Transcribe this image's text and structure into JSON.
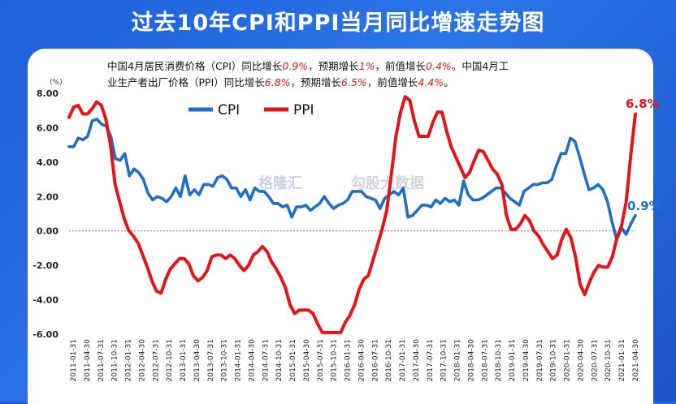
{
  "title": "过去10年CPI和PPI当月同比增速走势图",
  "note": {
    "p1": "中国4月居民消费价格（CPI）同比增长",
    "cpi": "0.9%",
    "p2": "，预期增长",
    "cpi_exp": "1%",
    "p3": "，前值增长",
    "cpi_prev": "0.4%",
    "p4": "。中国4月工业生产者出厂价格（PPI）同比增长",
    "ppi": "6.8%",
    "p5": "，预期增长",
    "ppi_exp": "6.5%",
    "p6": "，前值增长",
    "ppi_prev": "4.4%",
    "p7": "。"
  },
  "watermark": {
    "brand": "格隆汇",
    "data": "勾股大数据"
  },
  "chart_data": {
    "type": "line",
    "title": "过去10年CPI和PPI当月同比增速走势图",
    "ylabel": "(%)",
    "ylim": [
      -6,
      8
    ],
    "yticks": [
      8,
      6,
      4,
      2,
      0,
      -2,
      -4,
      -6
    ],
    "ytick_labels": [
      "8.00",
      "6.00",
      "4.00",
      "2.00",
      "0.00",
      "-2.00",
      "-4.00",
      "-6.00"
    ],
    "xtick_labels": [
      "2011-01-31",
      "2011-04-30",
      "2011-07-31",
      "2011-10-31",
      "2012-01-31",
      "2012-04-30",
      "2012-07-31",
      "2012-10-31",
      "2013-01-31",
      "2013-04-30",
      "2013-07-31",
      "2013-10-31",
      "2014-01-31",
      "2014-04-30",
      "2014-07-31",
      "2014-10-31",
      "2015-01-31",
      "2015-04-30",
      "2015-07-31",
      "2015-10-31",
      "2016-01-31",
      "2016-04-30",
      "2016-07-31",
      "2016-10-31",
      "2017-01-31",
      "2017-04-30",
      "2017-07-31",
      "2017-10-31",
      "2018-01-31",
      "2018-04-30",
      "2018-07-31",
      "2018-10-31",
      "2019-01-31",
      "2019-04-30",
      "2019-07-31",
      "2019-10-31",
      "2020-01-31",
      "2020-04-30",
      "2020-07-31",
      "2020-10-31",
      "2021-01-31",
      "2021-04-30"
    ],
    "legend": "top-left",
    "end_labels": {
      "ppi": "6.8%",
      "cpi": "0.9%"
    },
    "zero_line": true,
    "series": [
      {
        "name": "CPI",
        "color": "#1f6fc3",
        "values": [
          4.9,
          4.9,
          5.4,
          5.3,
          5.5,
          6.4,
          6.5,
          6.2,
          6.1,
          5.5,
          4.2,
          4.1,
          4.5,
          3.2,
          3.6,
          3.4,
          3.0,
          2.2,
          1.8,
          2.0,
          1.9,
          1.7,
          2.0,
          2.5,
          2.0,
          3.2,
          2.1,
          2.4,
          2.1,
          2.7,
          2.7,
          2.6,
          3.1,
          3.2,
          3.0,
          2.5,
          2.5,
          2.0,
          2.4,
          1.8,
          2.5,
          2.3,
          2.3,
          2.0,
          1.6,
          1.6,
          1.4,
          1.5,
          0.8,
          1.4,
          1.4,
          1.5,
          1.2,
          1.4,
          1.6,
          2.0,
          1.6,
          1.3,
          1.5,
          1.6,
          1.8,
          2.3,
          2.3,
          2.3,
          2.0,
          1.9,
          1.8,
          1.3,
          1.9,
          2.1,
          2.3,
          2.1,
          2.5,
          0.8,
          0.9,
          1.2,
          1.5,
          1.5,
          1.4,
          1.8,
          1.6,
          1.9,
          1.7,
          1.8,
          1.5,
          2.9,
          2.1,
          1.8,
          1.8,
          1.9,
          2.1,
          2.3,
          2.5,
          2.5,
          2.2,
          1.9,
          1.7,
          1.5,
          2.3,
          2.5,
          2.7,
          2.7,
          2.8,
          2.8,
          3.0,
          3.8,
          4.5,
          4.5,
          5.4,
          5.2,
          4.3,
          3.3,
          2.4,
          2.5,
          2.7,
          2.4,
          1.7,
          0.5,
          -0.5,
          0.2,
          -0.2,
          0.4,
          0.9
        ]
      },
      {
        "name": "PPI",
        "color": "#e0161a",
        "values": [
          6.6,
          7.2,
          7.3,
          6.8,
          6.8,
          7.1,
          7.5,
          7.3,
          6.5,
          5.0,
          2.7,
          1.7,
          0.7,
          0.0,
          -0.3,
          -0.7,
          -1.4,
          -2.1,
          -2.9,
          -3.5,
          -3.6,
          -2.8,
          -2.2,
          -1.9,
          -1.6,
          -1.6,
          -1.9,
          -2.6,
          -2.9,
          -2.7,
          -2.3,
          -1.5,
          -1.4,
          -1.4,
          -1.6,
          -1.4,
          -1.6,
          -2.0,
          -2.3,
          -2.0,
          -1.4,
          -1.2,
          -0.9,
          -1.2,
          -1.8,
          -2.2,
          -2.7,
          -3.3,
          -4.3,
          -4.8,
          -4.6,
          -4.6,
          -4.6,
          -4.8,
          -5.4,
          -5.9,
          -5.9,
          -5.9,
          -5.9,
          -5.9,
          -5.3,
          -4.9,
          -4.3,
          -3.4,
          -2.8,
          -2.6,
          -1.7,
          -0.8,
          0.1,
          1.2,
          3.3,
          5.5,
          6.9,
          7.8,
          7.6,
          6.4,
          5.5,
          5.5,
          5.5,
          6.3,
          6.9,
          6.9,
          5.8,
          4.9,
          4.3,
          3.7,
          3.1,
          3.4,
          4.1,
          4.7,
          4.6,
          4.1,
          3.6,
          3.3,
          2.7,
          0.9,
          0.1,
          0.1,
          0.4,
          0.9,
          0.6,
          0.0,
          -0.3,
          -0.8,
          -1.2,
          -1.6,
          -1.4,
          -0.5,
          0.1,
          -0.4,
          -1.5,
          -3.1,
          -3.7,
          -3.0,
          -2.4,
          -2.0,
          -2.1,
          -2.1,
          -1.5,
          -0.4,
          0.3,
          1.7,
          4.4,
          6.8
        ]
      }
    ]
  }
}
